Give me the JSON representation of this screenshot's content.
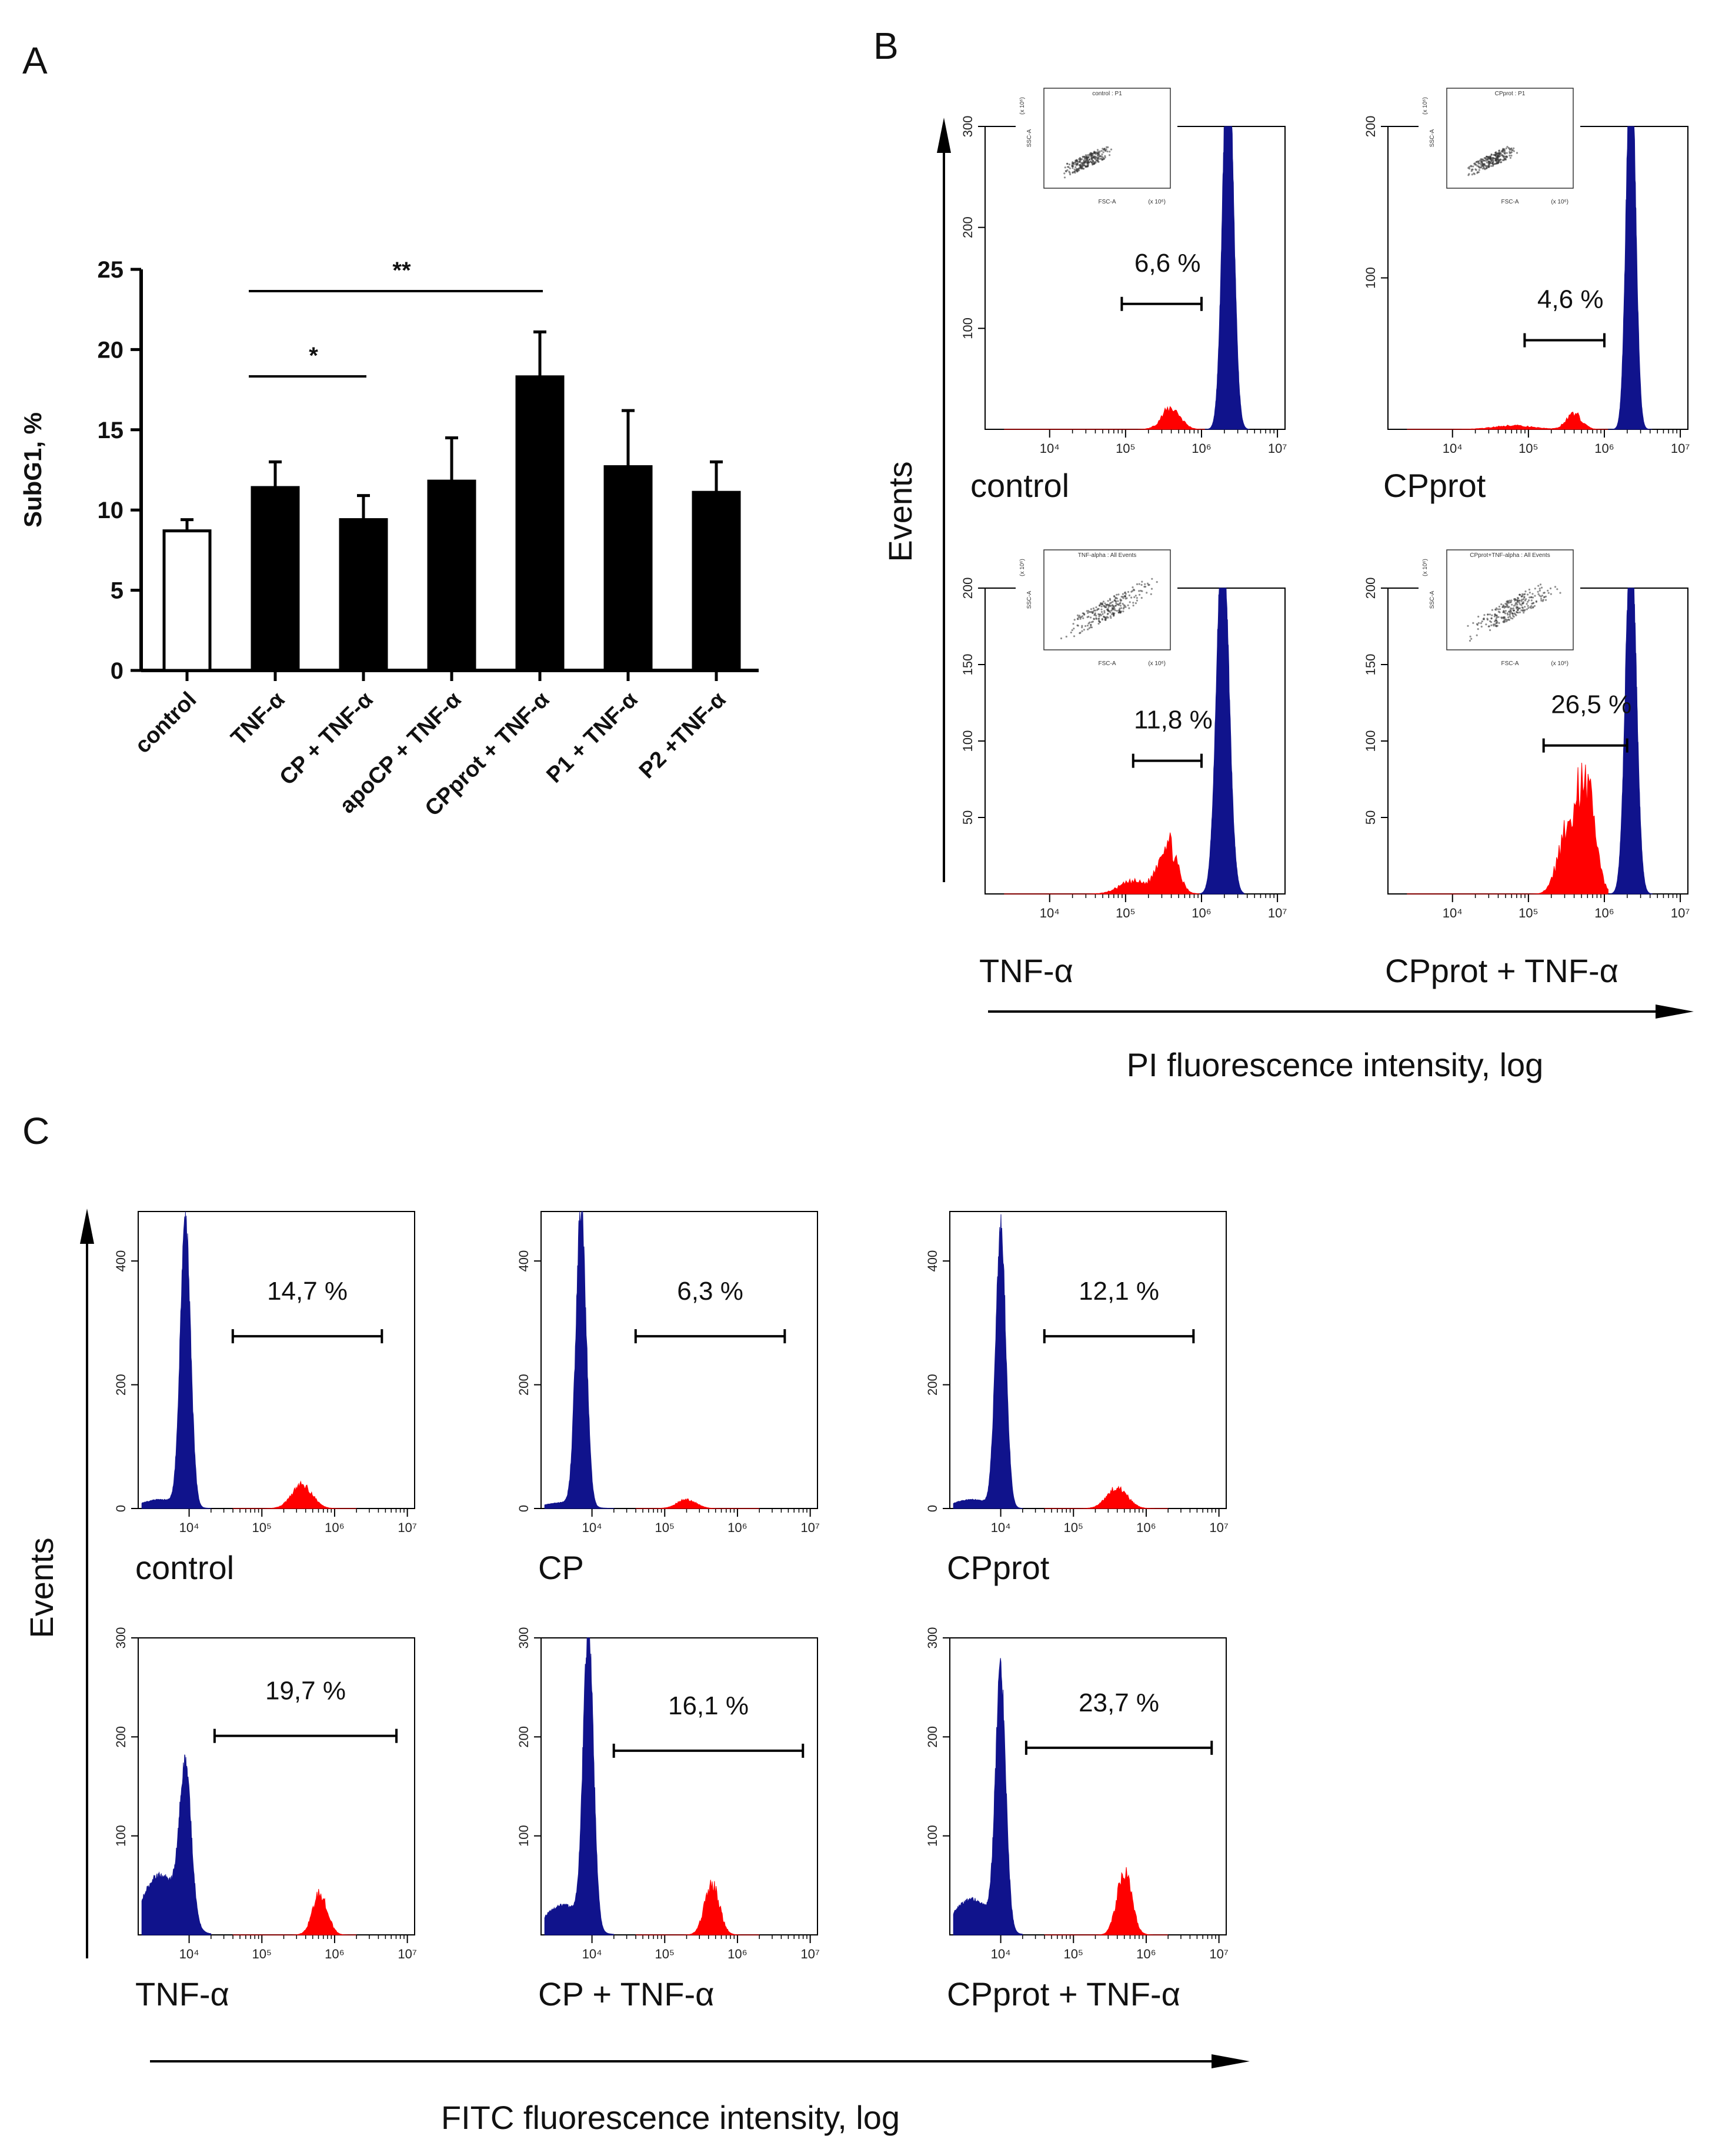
{
  "panels": {
    "a": "A",
    "b": "B",
    "c": "C"
  },
  "colors": {
    "bar_black": "#000000",
    "bar_white": "#ffffff",
    "hist_blue": "#10138c",
    "hist_red": "#ff0000",
    "text": "#111111"
  },
  "chart_data": [
    {
      "type": "bar",
      "panel": "A",
      "categories": [
        "control",
        "TNF-α",
        "CP + TNF-α",
        "apoCP + TNF-α",
        "CPprot + TNF-α",
        "P1 + TNF-α",
        "P2 +TNF-α"
      ],
      "series": [
        {
          "name": "SubG1",
          "values": [
            8.7,
            11.4,
            9.4,
            11.8,
            18.3,
            12.7,
            11.1
          ],
          "errors": [
            0.7,
            1.6,
            1.5,
            2.7,
            2.8,
            3.5,
            1.9
          ]
        }
      ],
      "fills": [
        "white",
        "black",
        "black",
        "black",
        "black",
        "black",
        "black"
      ],
      "ylabel": "SubG1, %",
      "ylim": [
        0,
        25
      ],
      "yticks": [
        "0",
        "5",
        "10",
        "15",
        "20",
        "25"
      ],
      "significance": [
        {
          "from": "TNF-α",
          "to": "CP + TNF-α",
          "label": "*"
        },
        {
          "from": "TNF-α",
          "to": "CPprot + TNF-α",
          "label": "**"
        }
      ]
    },
    {
      "type": "histogram",
      "panel": "B",
      "x_axis_title": "PI fluorescence intensity, log",
      "y_axis_title": "Events",
      "xticks": [
        "10⁴",
        "10⁵",
        "10⁶",
        "10⁷"
      ],
      "plots": [
        {
          "label": "control",
          "percent": "6,6 %",
          "yticks": [
            "100",
            "200",
            "300"
          ],
          "ymax": 300,
          "inset_title": "control : P1"
        },
        {
          "label": "CPprot",
          "percent": "4,6 %",
          "yticks": [
            "100",
            "200"
          ],
          "ymax": 200,
          "inset_title": "CPprot : P1"
        },
        {
          "label": "TNF-α",
          "percent": "11,8 %",
          "yticks": [
            "50",
            "100",
            "150",
            "200"
          ],
          "ymax": 200,
          "inset_title": "TNF-alpha : All Events"
        },
        {
          "label": "CPprot + TNF-α",
          "percent": "26,5 %",
          "yticks": [
            "50",
            "100",
            "150",
            "200"
          ],
          "ymax": 200,
          "inset_title": "CPprot+TNF-alpha : All Events"
        }
      ],
      "inset": {
        "x_label": "FSC-A",
        "y_label": "SSC-A",
        "x_unit": "(x 10⁶)",
        "y_unit": "(x 10⁶)"
      }
    },
    {
      "type": "histogram",
      "panel": "C",
      "x_axis_title": "FITC fluorescence intensity, log",
      "y_axis_title": "Events",
      "xticks": [
        "10⁴",
        "10⁵",
        "10⁶",
        "10⁷"
      ],
      "plots": [
        {
          "label": "control",
          "percent": "14,7 %",
          "yticks": [
            "0",
            "200",
            "400"
          ],
          "ymax": 480
        },
        {
          "label": "CP",
          "percent": "6,3 %",
          "yticks": [
            "0",
            "200",
            "400"
          ],
          "ymax": 480
        },
        {
          "label": "CPprot",
          "percent": "12,1 %",
          "yticks": [
            "0",
            "200",
            "400"
          ],
          "ymax": 480
        },
        {
          "label": "TNF-α",
          "percent": "19,7 %",
          "yticks": [
            "100",
            "200",
            "300"
          ],
          "ymax": 300
        },
        {
          "label": "CP + TNF-α",
          "percent": "16,1 %",
          "yticks": [
            "100",
            "200",
            "300"
          ],
          "ymax": 300
        },
        {
          "label": "CPprot + TNF-α",
          "percent": "23,7 %",
          "yticks": [
            "100",
            "200",
            "300"
          ],
          "ymax": 300
        }
      ]
    }
  ]
}
